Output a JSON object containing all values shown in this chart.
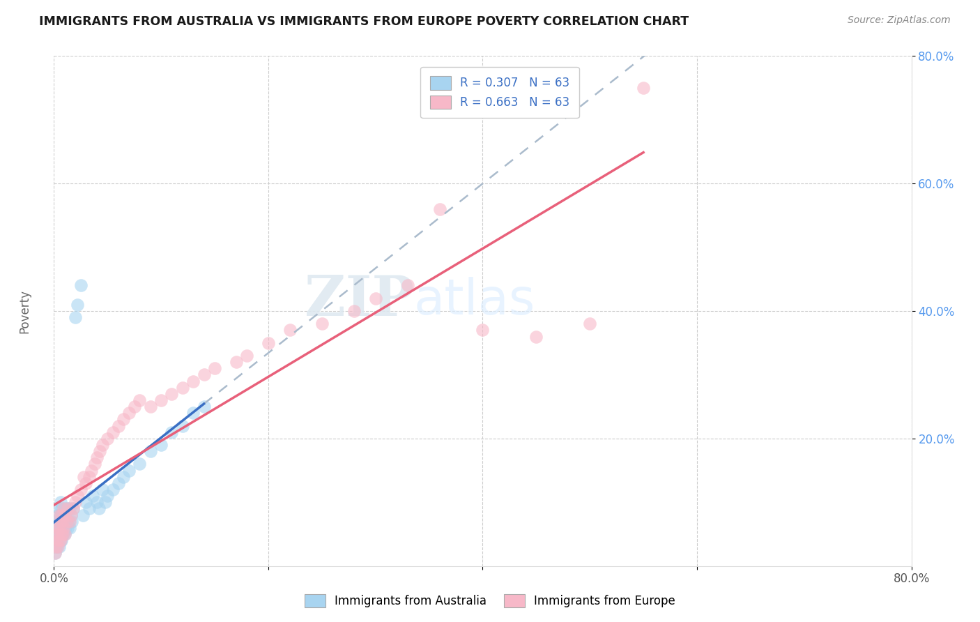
{
  "title": "IMMIGRANTS FROM AUSTRALIA VS IMMIGRANTS FROM EUROPE POVERTY CORRELATION CHART",
  "source": "Source: ZipAtlas.com",
  "ylabel": "Poverty",
  "xlim": [
    0.0,
    0.8
  ],
  "ylim": [
    0.0,
    0.8
  ],
  "legend_r1": "R = 0.307",
  "legend_n1": "N = 63",
  "legend_r2": "R = 0.663",
  "legend_n2": "N = 63",
  "color_australia": "#a8d4f0",
  "color_europe": "#f7b8c8",
  "line_color_australia": "#3a6fc4",
  "line_color_europe": "#e8607a",
  "line_color_dash": "#aabbcc",
  "watermark_zip": "ZIP",
  "watermark_atlas": "atlas",
  "background_color": "#ffffff",
  "grid_color": "#cccccc",
  "ytick_color": "#5599ee",
  "aus_x": [
    0.001,
    0.002,
    0.002,
    0.003,
    0.003,
    0.003,
    0.004,
    0.004,
    0.004,
    0.005,
    0.005,
    0.005,
    0.005,
    0.006,
    0.006,
    0.006,
    0.006,
    0.007,
    0.007,
    0.007,
    0.007,
    0.008,
    0.008,
    0.008,
    0.009,
    0.009,
    0.01,
    0.01,
    0.01,
    0.011,
    0.011,
    0.012,
    0.013,
    0.013,
    0.014,
    0.015,
    0.015,
    0.016,
    0.017,
    0.018,
    0.02,
    0.022,
    0.025,
    0.027,
    0.03,
    0.033,
    0.036,
    0.04,
    0.042,
    0.045,
    0.048,
    0.05,
    0.055,
    0.06,
    0.065,
    0.07,
    0.08,
    0.09,
    0.1,
    0.11,
    0.12,
    0.13,
    0.14
  ],
  "aus_y": [
    0.02,
    0.03,
    0.04,
    0.03,
    0.05,
    0.07,
    0.04,
    0.06,
    0.08,
    0.03,
    0.05,
    0.07,
    0.09,
    0.04,
    0.06,
    0.08,
    0.1,
    0.04,
    0.05,
    0.07,
    0.09,
    0.05,
    0.06,
    0.08,
    0.05,
    0.07,
    0.05,
    0.07,
    0.09,
    0.06,
    0.08,
    0.07,
    0.06,
    0.09,
    0.07,
    0.06,
    0.09,
    0.08,
    0.07,
    0.09,
    0.39,
    0.41,
    0.44,
    0.08,
    0.1,
    0.09,
    0.11,
    0.1,
    0.09,
    0.12,
    0.1,
    0.11,
    0.12,
    0.13,
    0.14,
    0.15,
    0.16,
    0.18,
    0.19,
    0.21,
    0.22,
    0.24,
    0.25
  ],
  "eur_x": [
    0.001,
    0.002,
    0.002,
    0.003,
    0.003,
    0.004,
    0.004,
    0.005,
    0.005,
    0.005,
    0.006,
    0.006,
    0.007,
    0.007,
    0.008,
    0.008,
    0.009,
    0.009,
    0.01,
    0.01,
    0.012,
    0.013,
    0.015,
    0.016,
    0.018,
    0.02,
    0.022,
    0.025,
    0.028,
    0.03,
    0.033,
    0.035,
    0.038,
    0.04,
    0.043,
    0.045,
    0.05,
    0.055,
    0.06,
    0.065,
    0.07,
    0.075,
    0.08,
    0.09,
    0.1,
    0.11,
    0.12,
    0.13,
    0.14,
    0.15,
    0.17,
    0.18,
    0.2,
    0.22,
    0.25,
    0.28,
    0.3,
    0.33,
    0.36,
    0.4,
    0.45,
    0.5,
    0.55
  ],
  "eur_y": [
    0.02,
    0.03,
    0.05,
    0.04,
    0.06,
    0.03,
    0.05,
    0.04,
    0.06,
    0.08,
    0.04,
    0.07,
    0.05,
    0.08,
    0.05,
    0.07,
    0.06,
    0.09,
    0.05,
    0.08,
    0.07,
    0.09,
    0.07,
    0.08,
    0.09,
    0.1,
    0.11,
    0.12,
    0.14,
    0.13,
    0.14,
    0.15,
    0.16,
    0.17,
    0.18,
    0.19,
    0.2,
    0.21,
    0.22,
    0.23,
    0.24,
    0.25,
    0.26,
    0.25,
    0.26,
    0.27,
    0.28,
    0.29,
    0.3,
    0.31,
    0.32,
    0.33,
    0.35,
    0.37,
    0.38,
    0.4,
    0.42,
    0.44,
    0.56,
    0.37,
    0.36,
    0.38,
    0.75
  ]
}
